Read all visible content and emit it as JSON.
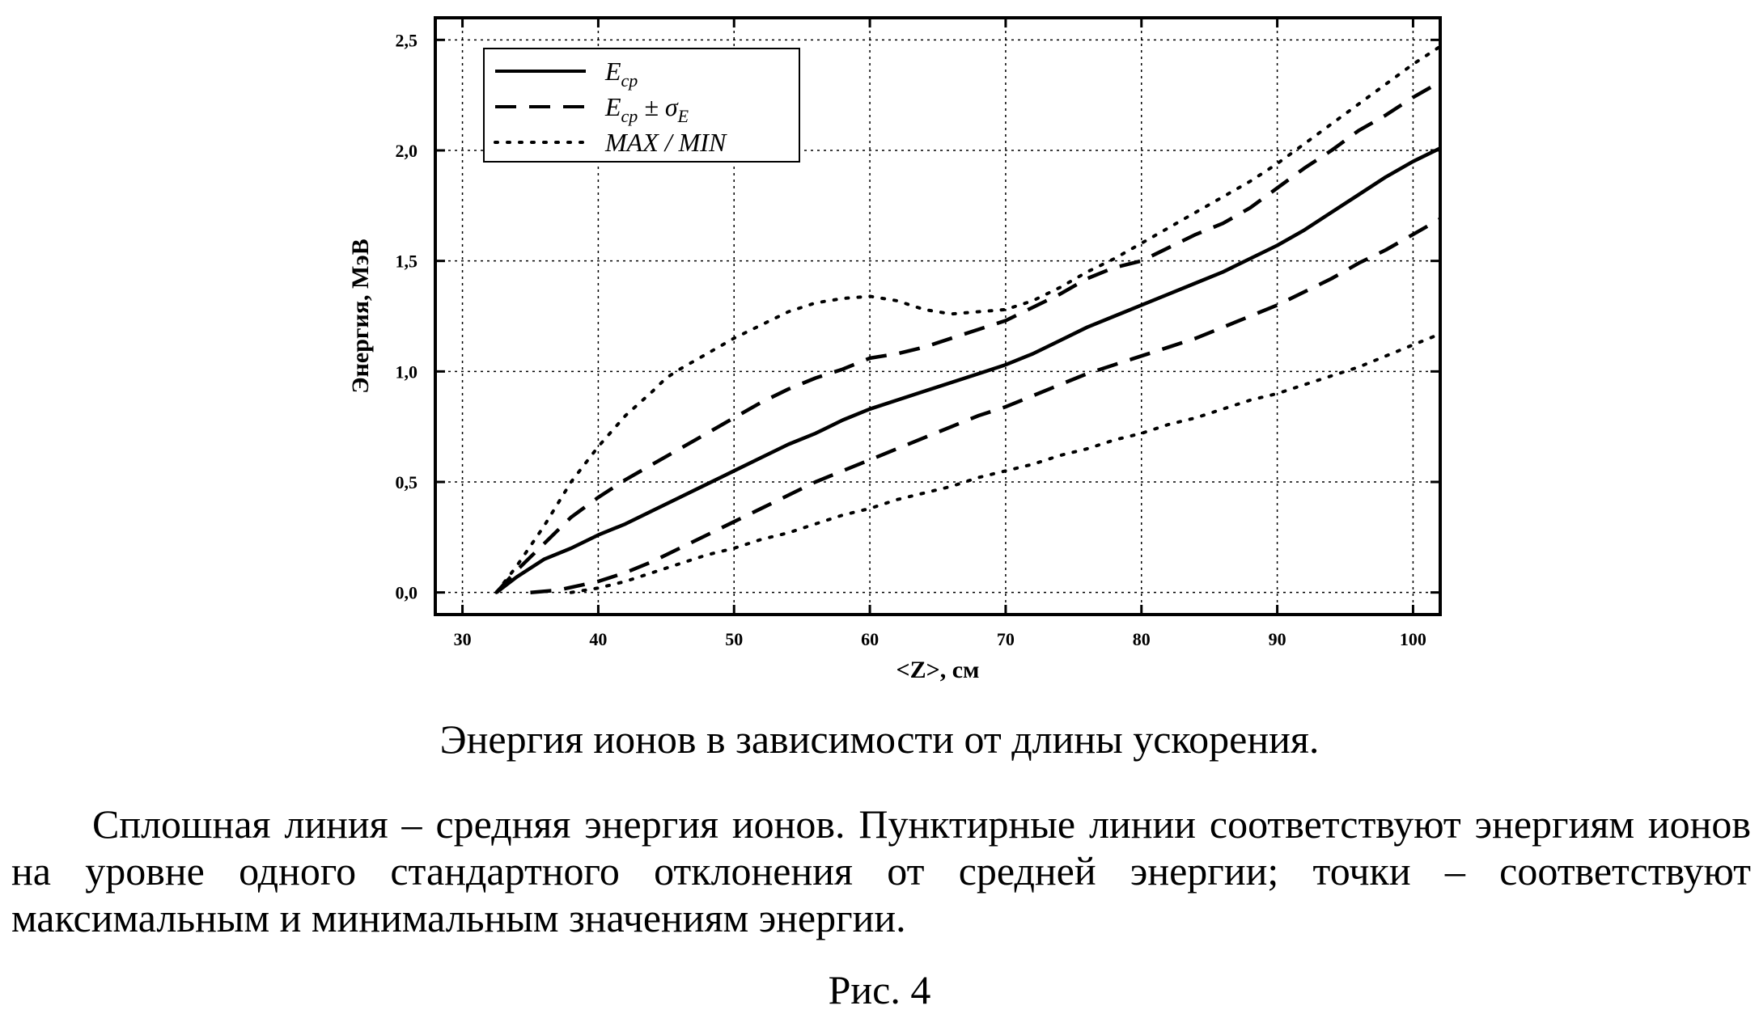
{
  "chart_data": {
    "type": "line",
    "xlabel": "<Z>, см",
    "ylabel": "Энергия, МэВ",
    "xlim": [
      28,
      102
    ],
    "ylim": [
      -0.1,
      2.6
    ],
    "xticks": [
      30,
      40,
      50,
      60,
      70,
      80,
      90,
      100
    ],
    "yticks": [
      0.0,
      0.5,
      1.0,
      1.5,
      2.0,
      2.5
    ],
    "xtick_labels": [
      "30",
      "40",
      "50",
      "60",
      "70",
      "80",
      "90",
      "100"
    ],
    "ytick_labels": [
      "0,0",
      "0,5",
      "1,0",
      "1,5",
      "2,0",
      "2,5"
    ],
    "grid": true,
    "legend_position": "top-left",
    "legend": [
      {
        "style": "solid",
        "label": "E",
        "sub": "ср",
        "suffix": ""
      },
      {
        "style": "dashed",
        "label": "E",
        "sub": "ср",
        "suffix": " ± σ",
        "suffix_sub": "E"
      },
      {
        "style": "dotted",
        "label": "MAX / MIN",
        "sub": "",
        "suffix": ""
      }
    ],
    "series": [
      {
        "style": "solid",
        "x": [
          32.5,
          34,
          36,
          38,
          40,
          42,
          44,
          46,
          48,
          50,
          52,
          54,
          56,
          58,
          60,
          62,
          64,
          66,
          68,
          70,
          72,
          74,
          76,
          78,
          80,
          82,
          84,
          86,
          88,
          90,
          92,
          94,
          96,
          98,
          100,
          102
        ],
        "y": [
          0.0,
          0.07,
          0.15,
          0.2,
          0.26,
          0.31,
          0.37,
          0.43,
          0.49,
          0.55,
          0.61,
          0.67,
          0.72,
          0.78,
          0.83,
          0.87,
          0.91,
          0.95,
          0.99,
          1.03,
          1.08,
          1.14,
          1.2,
          1.25,
          1.3,
          1.35,
          1.4,
          1.45,
          1.51,
          1.57,
          1.64,
          1.72,
          1.8,
          1.88,
          1.95,
          2.01
        ]
      },
      {
        "style": "dashed",
        "x": [
          32.5,
          34,
          36,
          38,
          40,
          42,
          44,
          46,
          48,
          50,
          52,
          54,
          56,
          58,
          60,
          62,
          64,
          66,
          68,
          70,
          72,
          74,
          76,
          78,
          80,
          82,
          84,
          86,
          88,
          90,
          92,
          94,
          96,
          98,
          100,
          102
        ],
        "y": [
          0.0,
          0.1,
          0.22,
          0.34,
          0.43,
          0.51,
          0.58,
          0.65,
          0.72,
          0.79,
          0.86,
          0.92,
          0.97,
          1.01,
          1.06,
          1.08,
          1.11,
          1.15,
          1.19,
          1.23,
          1.29,
          1.35,
          1.42,
          1.47,
          1.5,
          1.56,
          1.62,
          1.67,
          1.74,
          1.83,
          1.92,
          2.0,
          2.09,
          2.16,
          2.24,
          2.31
        ]
      },
      {
        "style": "dashed",
        "x": [
          35,
          37,
          40,
          42,
          44,
          46,
          48,
          50,
          52,
          54,
          56,
          58,
          60,
          62,
          64,
          66,
          68,
          70,
          72,
          74,
          76,
          78,
          80,
          82,
          84,
          86,
          88,
          90,
          92,
          94,
          96,
          98,
          100,
          102
        ],
        "y": [
          0.0,
          0.01,
          0.05,
          0.09,
          0.14,
          0.2,
          0.26,
          0.32,
          0.38,
          0.44,
          0.5,
          0.55,
          0.6,
          0.65,
          0.7,
          0.75,
          0.8,
          0.84,
          0.89,
          0.94,
          0.99,
          1.03,
          1.07,
          1.11,
          1.15,
          1.2,
          1.25,
          1.3,
          1.36,
          1.42,
          1.49,
          1.55,
          1.62,
          1.69
        ]
      },
      {
        "style": "dotted",
        "x": [
          32.5,
          34,
          36,
          38,
          40,
          42,
          44,
          45,
          46,
          48,
          50,
          52,
          54,
          56,
          58,
          60,
          62,
          64,
          66,
          68,
          70,
          72,
          74,
          76,
          78,
          80,
          82,
          84,
          86,
          88,
          90,
          92,
          94,
          96,
          98,
          100,
          102
        ],
        "y": [
          0.0,
          0.12,
          0.3,
          0.5,
          0.66,
          0.8,
          0.91,
          0.97,
          1.01,
          1.08,
          1.15,
          1.21,
          1.27,
          1.31,
          1.33,
          1.34,
          1.32,
          1.28,
          1.26,
          1.27,
          1.28,
          1.32,
          1.38,
          1.45,
          1.51,
          1.58,
          1.65,
          1.72,
          1.79,
          1.86,
          1.94,
          2.03,
          2.12,
          2.21,
          2.3,
          2.39,
          2.47
        ]
      },
      {
        "style": "dotted",
        "x": [
          38,
          40,
          42,
          44,
          46,
          48,
          50,
          52,
          54,
          56,
          58,
          60,
          62,
          64,
          66,
          68,
          70,
          72,
          74,
          76,
          78,
          80,
          82,
          84,
          86,
          88,
          90,
          92,
          94,
          96,
          98,
          100,
          102
        ],
        "y": [
          0.0,
          0.02,
          0.05,
          0.09,
          0.13,
          0.17,
          0.2,
          0.24,
          0.27,
          0.31,
          0.35,
          0.38,
          0.42,
          0.45,
          0.48,
          0.52,
          0.55,
          0.58,
          0.62,
          0.65,
          0.69,
          0.72,
          0.76,
          0.79,
          0.83,
          0.87,
          0.9,
          0.94,
          0.98,
          1.02,
          1.07,
          1.12,
          1.17
        ]
      }
    ]
  },
  "caption": {
    "title": "Энергия ионов в зависимости от длины ускорения.",
    "body": "Сплошная линия – средняя энергия ионов. Пунктирные линии соответствуют энергиям ионов на уровне одного стандартного отклонения от средней энергии; точки – соответствуют максимальным и минимальным значениям энергии.",
    "figure_number": "Рис. 4"
  }
}
